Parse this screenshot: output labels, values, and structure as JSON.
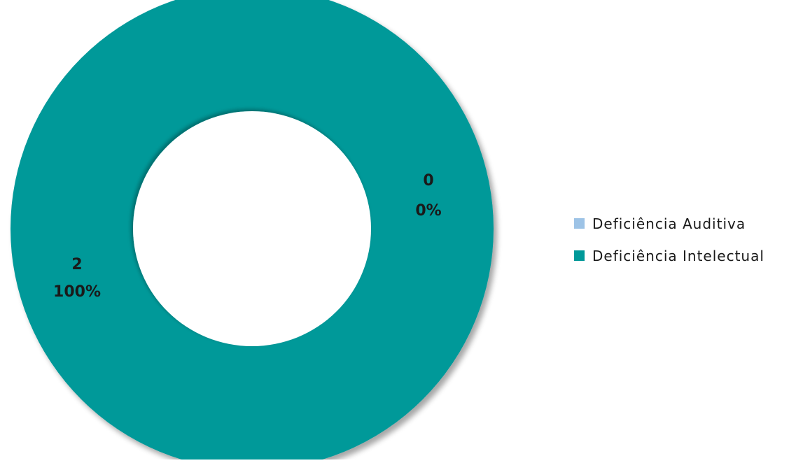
{
  "chart_data": {
    "type": "pie",
    "variant": "donut",
    "categories": [
      "Deficiência Auditiva",
      "Deficiência Intelectual"
    ],
    "values": [
      0,
      2
    ],
    "percentages": [
      "0%",
      "100%"
    ],
    "value_labels": [
      "0",
      "2"
    ],
    "colors": [
      "#9dc3e6",
      "#009999"
    ],
    "legend": {
      "placement": "right",
      "entries": [
        "Deficiência Auditiva",
        "Deficiência Intelectual"
      ]
    }
  }
}
